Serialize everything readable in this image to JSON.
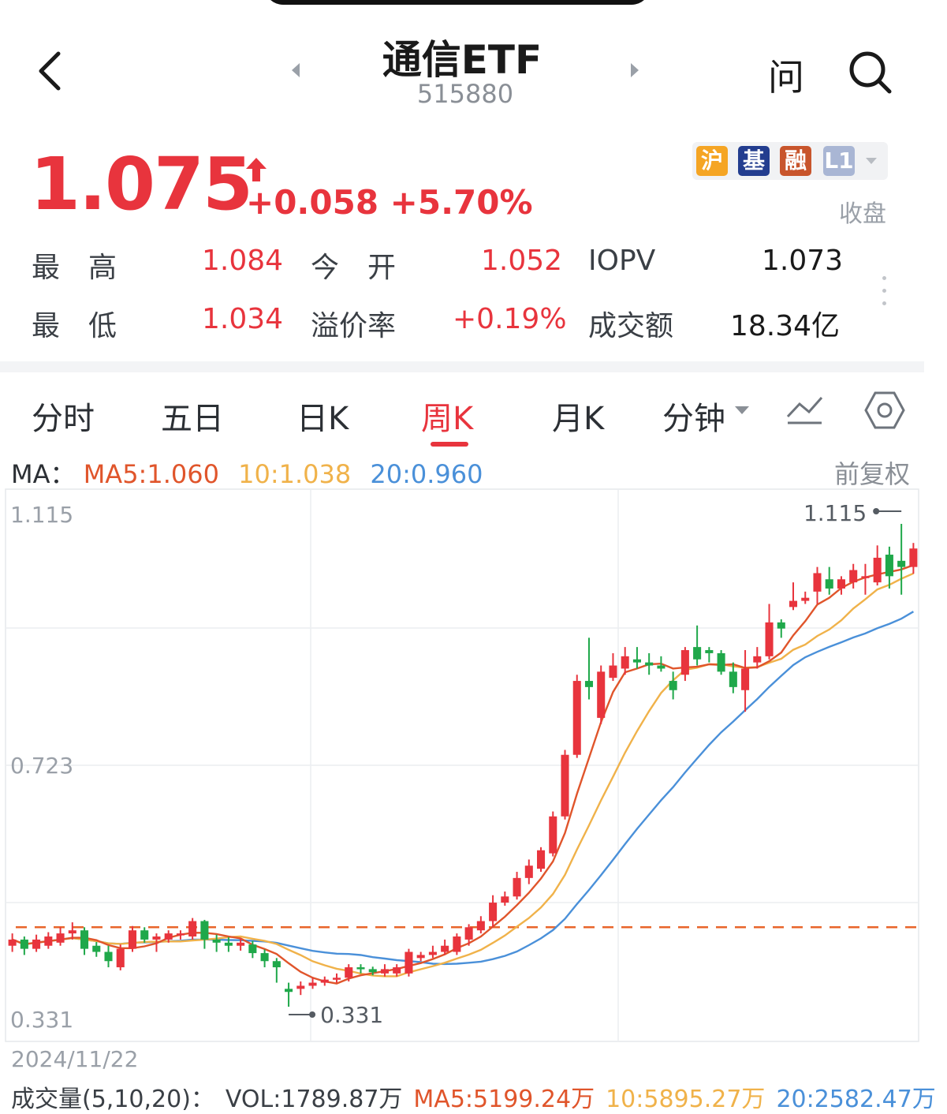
{
  "header": {
    "title": "通信ETF",
    "code": "515880",
    "ask_label": "问"
  },
  "quote": {
    "price": "1.075",
    "change": "+0.058",
    "change_pct": "+5.70%",
    "badges": [
      "沪",
      "基",
      "融",
      "L1"
    ],
    "status": "收盘",
    "color_up": "#e8343d",
    "color_down": "#1fa84a"
  },
  "stats": {
    "high_label": "最　高",
    "high_value": "1.084",
    "open_label": "今　开",
    "open_value": "1.052",
    "iopv_label": "IOPV",
    "iopv_value": "1.073",
    "low_label": "最　低",
    "low_value": "1.034",
    "premium_label": "溢价率",
    "premium_value": "+0.19%",
    "turnover_label": "成交额",
    "turnover_value": "18.34亿"
  },
  "tabs": [
    {
      "label": "分时"
    },
    {
      "label": "五日"
    },
    {
      "label": "日K"
    },
    {
      "label": "周K",
      "active": true
    },
    {
      "label": "月K"
    },
    {
      "label": "分钟"
    }
  ],
  "ma": {
    "prefix": "MA：",
    "ma5": "MA5:1.060",
    "ma10": "10:1.038",
    "ma20": "20:0.960",
    "adjust": "前复权",
    "color_ma5": "#e0552b",
    "color_ma10": "#f0b24a",
    "color_ma20": "#4a90d9"
  },
  "chart_data": {
    "type": "candlestick",
    "period": "weekly",
    "y_top_label": "1.115",
    "y_mid_label": "0.723",
    "y_bottom_label": "0.331",
    "ylim": [
      0.331,
      1.115
    ],
    "max_marker": "1.115",
    "min_marker": "0.331",
    "reference_line": 0.46,
    "start_date": "2024/11/22",
    "candles": [
      [
        0.43,
        0.44,
        0.45,
        0.42
      ],
      [
        0.44,
        0.425,
        0.445,
        0.415
      ],
      [
        0.425,
        0.44,
        0.448,
        0.42
      ],
      [
        0.43,
        0.445,
        0.452,
        0.425
      ],
      [
        0.435,
        0.45,
        0.46,
        0.43
      ],
      [
        0.45,
        0.455,
        0.468,
        0.44
      ],
      [
        0.455,
        0.425,
        0.46,
        0.415
      ],
      [
        0.43,
        0.42,
        0.436,
        0.412
      ],
      [
        0.42,
        0.405,
        0.43,
        0.395
      ],
      [
        0.395,
        0.425,
        0.432,
        0.39
      ],
      [
        0.425,
        0.455,
        0.462,
        0.42
      ],
      [
        0.455,
        0.44,
        0.46,
        0.435
      ],
      [
        0.44,
        0.445,
        0.45,
        0.42
      ],
      [
        0.44,
        0.45,
        0.455,
        0.435
      ],
      [
        0.45,
        0.45,
        0.455,
        0.44
      ],
      [
        0.445,
        0.47,
        0.475,
        0.44
      ],
      [
        0.47,
        0.44,
        0.472,
        0.425
      ],
      [
        0.44,
        0.435,
        0.448,
        0.42
      ],
      [
        0.435,
        0.43,
        0.444,
        0.42
      ],
      [
        0.43,
        0.435,
        0.442,
        0.422
      ],
      [
        0.432,
        0.418,
        0.438,
        0.41
      ],
      [
        0.418,
        0.405,
        0.424,
        0.395
      ],
      [
        0.405,
        0.395,
        0.41,
        0.37
      ],
      [
        0.36,
        0.355,
        0.37,
        0.331
      ],
      [
        0.36,
        0.365,
        0.372,
        0.35
      ],
      [
        0.365,
        0.37,
        0.378,
        0.36
      ],
      [
        0.37,
        0.375,
        0.38,
        0.365
      ],
      [
        0.375,
        0.378,
        0.385,
        0.37
      ],
      [
        0.378,
        0.395,
        0.4,
        0.372
      ],
      [
        0.395,
        0.392,
        0.4,
        0.385
      ],
      [
        0.392,
        0.387,
        0.396,
        0.382
      ],
      [
        0.385,
        0.392,
        0.4,
        0.38
      ],
      [
        0.385,
        0.395,
        0.4,
        0.38
      ],
      [
        0.385,
        0.42,
        0.425,
        0.38
      ],
      [
        0.41,
        0.415,
        0.42,
        0.405
      ],
      [
        0.415,
        0.42,
        0.43,
        0.41
      ],
      [
        0.42,
        0.43,
        0.44,
        0.415
      ],
      [
        0.42,
        0.445,
        0.45,
        0.415
      ],
      [
        0.44,
        0.46,
        0.465,
        0.43
      ],
      [
        0.455,
        0.47,
        0.478,
        0.45
      ],
      [
        0.47,
        0.5,
        0.512,
        0.46
      ],
      [
        0.5,
        0.51,
        0.518,
        0.495
      ],
      [
        0.51,
        0.54,
        0.55,
        0.505
      ],
      [
        0.54,
        0.56,
        0.57,
        0.53
      ],
      [
        0.555,
        0.585,
        0.59,
        0.55
      ],
      [
        0.58,
        0.64,
        0.648,
        0.575
      ],
      [
        0.64,
        0.74,
        0.748,
        0.635
      ],
      [
        0.74,
        0.86,
        0.87,
        0.735
      ],
      [
        0.86,
        0.85,
        0.93,
        0.83
      ],
      [
        0.8,
        0.875,
        0.885,
        0.79
      ],
      [
        0.865,
        0.885,
        0.905,
        0.86
      ],
      [
        0.88,
        0.9,
        0.915,
        0.87
      ],
      [
        0.895,
        0.89,
        0.915,
        0.88
      ],
      [
        0.89,
        0.885,
        0.905,
        0.87
      ],
      [
        0.885,
        0.88,
        0.9,
        0.875
      ],
      [
        0.86,
        0.845,
        0.875,
        0.83
      ],
      [
        0.87,
        0.91,
        0.915,
        0.86
      ],
      [
        0.915,
        0.895,
        0.95,
        0.885
      ],
      [
        0.91,
        0.905,
        0.915,
        0.89
      ],
      [
        0.905,
        0.875,
        0.91,
        0.87
      ],
      [
        0.875,
        0.85,
        0.89,
        0.84
      ],
      [
        0.845,
        0.88,
        0.91,
        0.81
      ],
      [
        0.89,
        0.9,
        0.915,
        0.88
      ],
      [
        0.9,
        0.955,
        0.985,
        0.895
      ],
      [
        0.955,
        0.945,
        0.96,
        0.93
      ],
      [
        0.98,
        0.99,
        1.02,
        0.975
      ],
      [
        0.99,
        0.995,
        1.005,
        0.985
      ],
      [
        1.005,
        1.035,
        1.045,
        0.985
      ],
      [
        1.025,
        1.01,
        1.045,
        1.0
      ],
      [
        1.01,
        1.025,
        1.03,
        1.0
      ],
      [
        1.02,
        1.04,
        1.05,
        1.01
      ],
      [
        1.03,
        1.03,
        1.05,
        1.0
      ],
      [
        1.02,
        1.06,
        1.08,
        1.015
      ],
      [
        1.065,
        1.03,
        1.078,
        1.01
      ],
      [
        1.055,
        1.045,
        1.115,
        1.0
      ],
      [
        1.045,
        1.075,
        1.084,
        1.034
      ]
    ]
  },
  "footer": {
    "date": "2024/11/22",
    "vol_title": "成交量(5,10,20)：",
    "vol": "VOL:1789.87万",
    "vol_ma5": "MA5:5199.24万",
    "vol_ma10": "10:5895.27万",
    "vol_ma20": "20:2582.47万"
  }
}
